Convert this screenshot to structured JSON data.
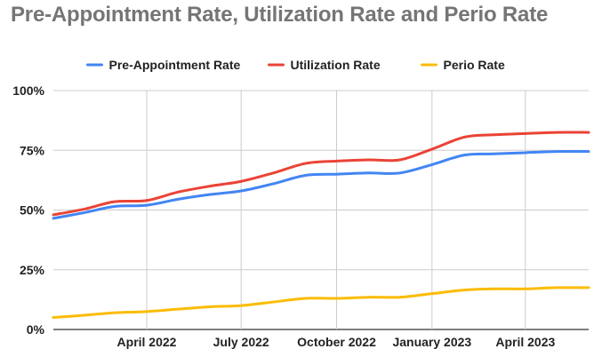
{
  "chart_data": {
    "type": "line",
    "title": "Pre-Appointment Rate, Utilization Rate and Perio Rate",
    "xlabel": "",
    "ylabel": "",
    "x_start": "2022-01-01",
    "x_end": "2023-06-01",
    "x_ticks": [
      {
        "label": "April 2022",
        "date": "2022-04-01"
      },
      {
        "label": "July 2022",
        "date": "2022-07-01"
      },
      {
        "label": "October 2022",
        "date": "2022-10-01"
      },
      {
        "label": "January 2023",
        "date": "2023-01-01"
      },
      {
        "label": "April 2023",
        "date": "2023-04-01"
      }
    ],
    "y_ticks": [
      {
        "label": "0%",
        "value": 0
      },
      {
        "label": "25%",
        "value": 25
      },
      {
        "label": "50%",
        "value": 50
      },
      {
        "label": "75%",
        "value": 75
      },
      {
        "label": "100%",
        "value": 100
      }
    ],
    "ylim": [
      0,
      100
    ],
    "grid": true,
    "legend_position": "top",
    "x": [
      "2022-01-01",
      "2022-02-01",
      "2022-03-01",
      "2022-04-01",
      "2022-05-01",
      "2022-06-01",
      "2022-07-01",
      "2022-08-01",
      "2022-09-01",
      "2022-10-01",
      "2022-11-01",
      "2022-12-01",
      "2023-01-01",
      "2023-02-01",
      "2023-03-01",
      "2023-04-01",
      "2023-05-01",
      "2023-06-01"
    ],
    "series": [
      {
        "name": "Pre-Appointment Rate",
        "color": "#4285f4",
        "values": [
          46.5,
          49.0,
          51.5,
          52.0,
          54.5,
          56.5,
          58.0,
          61.0,
          64.5,
          65.0,
          65.5,
          65.5,
          69.0,
          73.0,
          73.5,
          74.0,
          74.5,
          74.5
        ]
      },
      {
        "name": "Utilization Rate",
        "color": "#ea4335",
        "values": [
          48.0,
          50.5,
          53.5,
          54.0,
          57.5,
          60.0,
          62.0,
          65.5,
          69.5,
          70.5,
          71.0,
          71.0,
          75.5,
          80.5,
          81.5,
          82.0,
          82.5,
          82.5
        ]
      },
      {
        "name": "Perio Rate",
        "color": "#fbbc04",
        "values": [
          5.0,
          6.0,
          7.0,
          7.5,
          8.5,
          9.5,
          10.0,
          11.5,
          13.0,
          13.0,
          13.5,
          13.5,
          15.0,
          16.5,
          17.0,
          17.0,
          17.5,
          17.5
        ]
      }
    ]
  }
}
